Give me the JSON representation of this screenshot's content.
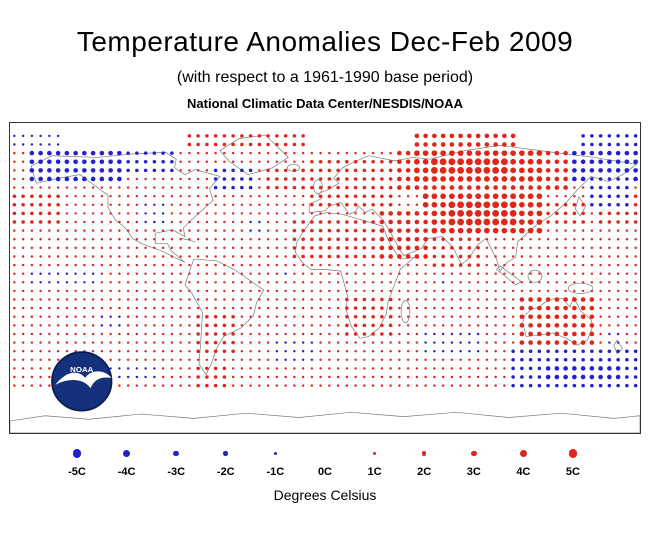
{
  "title": "Temperature Anomalies Dec-Feb 2009",
  "subtitle": "(with respect to a 1961-1990 base period)",
  "source": "National Climatic Data Center/NESDIS/NOAA",
  "logo": {
    "label": "NOAA"
  },
  "colors": {
    "positive": "#e0251a",
    "negative": "#2222cc"
  },
  "legend": {
    "caption": "Degrees Celsius",
    "items": [
      {
        "label": "-5C",
        "value": -5
      },
      {
        "label": "-4C",
        "value": -4
      },
      {
        "label": "-3C",
        "value": -3
      },
      {
        "label": "-2C",
        "value": -2
      },
      {
        "label": "-1C",
        "value": -1
      },
      {
        "label": "0C",
        "value": 0
      },
      {
        "label": "1C",
        "value": 1
      },
      {
        "label": "2C",
        "value": 2
      },
      {
        "label": "3C",
        "value": 3
      },
      {
        "label": "4C",
        "value": 4
      },
      {
        "label": "5C",
        "value": 5
      }
    ]
  },
  "chart_data": {
    "type": "scatter",
    "title": "Temperature Anomalies Dec-Feb 2009",
    "units": "degrees Celsius anomaly vs 1961-1990 base period",
    "projection": "equirectangular",
    "grid_degrees": 5,
    "lon_range": [
      -180,
      180
    ],
    "lat_range": [
      -90,
      90
    ],
    "base_value": 1,
    "base_lat_range": [
      -63,
      84
    ],
    "regions": [
      {
        "name": "arctic-row-clear",
        "lat": [
          75,
          85
        ],
        "lon": [
          -180,
          180
        ],
        "value": 0
      },
      {
        "name": "arctic-greenland-warm",
        "lat": [
          75,
          85
        ],
        "lon": [
          -80,
          -10
        ],
        "value": 2
      },
      {
        "name": "arctic-siberia-warm",
        "lat": [
          75,
          85
        ],
        "lon": [
          50,
          110
        ],
        "value": 3
      },
      {
        "name": "arctic-east-cold",
        "lat": [
          75,
          85
        ],
        "lon": [
          145,
          180
        ],
        "value": -2
      },
      {
        "name": "arctic-west-cold",
        "lat": [
          75,
          85
        ],
        "lon": [
          -180,
          -150
        ],
        "value": -1
      },
      {
        "name": "alaska-nw-canada-cold",
        "lat": [
          55,
          75
        ],
        "lon": [
          -170,
          -115
        ],
        "value": -3
      },
      {
        "name": "north-canada-cold",
        "lat": [
          60,
          75
        ],
        "lon": [
          -115,
          -85
        ],
        "value": -2
      },
      {
        "name": "labrador-cold",
        "lat": [
          52,
          65
        ],
        "lon": [
          -65,
          -42
        ],
        "value": -2
      },
      {
        "name": "north-atlantic-warm",
        "lat": [
          50,
          66
        ],
        "lon": [
          -35,
          -10
        ],
        "value": 2
      },
      {
        "name": "europe-warm",
        "lat": [
          42,
          72
        ],
        "lon": [
          -12,
          40
        ],
        "value": 2
      },
      {
        "name": "siberia-warm",
        "lat": [
          48,
          75
        ],
        "lon": [
          40,
          142
        ],
        "value": 3
      },
      {
        "name": "siberia-warm-core",
        "lat": [
          55,
          75
        ],
        "lon": [
          50,
          125
        ],
        "value": 4
      },
      {
        "name": "siberia-warm-peak",
        "lat": [
          60,
          72
        ],
        "lon": [
          60,
          105
        ],
        "value": 5
      },
      {
        "name": "bering-chukotka-cold",
        "lat": [
          55,
          75
        ],
        "lon": [
          142,
          180
        ],
        "value": -3
      },
      {
        "name": "india-warm",
        "lat": [
          5,
          28
        ],
        "lon": [
          62,
          92
        ],
        "value": 2
      },
      {
        "name": "central-asia-warm",
        "lat": [
          25,
          50
        ],
        "lon": [
          55,
          125
        ],
        "value": 4
      },
      {
        "name": "central-asia-peak",
        "lat": [
          28,
          46
        ],
        "lon": [
          68,
          112
        ],
        "value": 5
      },
      {
        "name": "middle-east-warm",
        "lat": [
          12,
          38
        ],
        "lon": [
          32,
          60
        ],
        "value": 3
      },
      {
        "name": "north-africa-warm",
        "lat": [
          8,
          35
        ],
        "lon": [
          -18,
          32
        ],
        "value": 2
      },
      {
        "name": "japan-warm",
        "lat": [
          28,
          45
        ],
        "lon": [
          125,
          150
        ],
        "value": 2
      },
      {
        "name": "north-pacific-warm-west",
        "lat": [
          28,
          48
        ],
        "lon": [
          155,
          180
        ],
        "value": 2
      },
      {
        "name": "north-pacific-warm-east",
        "lat": [
          28,
          48
        ],
        "lon": [
          -180,
          -150
        ],
        "value": 2
      },
      {
        "name": "northwest-pacific-cold",
        "lat": [
          42,
          58
        ],
        "lon": [
          148,
          175
        ],
        "value": -2
      },
      {
        "name": "us-central-cold",
        "lat": [
          32,
          45
        ],
        "lon": [
          -105,
          -88
        ],
        "value": -1
      },
      {
        "name": "central-atlantic-cool-spot",
        "lat": [
          25,
          33
        ],
        "lon": [
          -45,
          -35
        ],
        "value": -1
      },
      {
        "name": "equatorial-pacific-cool",
        "lat": [
          -5,
          3
        ],
        "lon": [
          -170,
          -130
        ],
        "value": -1
      },
      {
        "name": "eq-atlantic-cool-spot",
        "lat": [
          0,
          5
        ],
        "lon": [
          -25,
          -20
        ],
        "value": -1
      },
      {
        "name": "eq-indian-cool-spot",
        "lat": [
          -5,
          0
        ],
        "lon": [
          65,
          70
        ],
        "value": -1
      },
      {
        "name": "south-africa-warm",
        "lat": [
          -35,
          -12
        ],
        "lon": [
          12,
          38
        ],
        "value": 2
      },
      {
        "name": "australia-warm",
        "lat": [
          -40,
          -10
        ],
        "lon": [
          110,
          155
        ],
        "value": 3
      },
      {
        "name": "argentina-warm",
        "lat": [
          -45,
          -20
        ],
        "lon": [
          -75,
          -50
        ],
        "value": 2
      },
      {
        "name": "south-atlantic-cool",
        "lat": [
          -50,
          -35
        ],
        "lon": [
          -30,
          -5
        ],
        "value": -1
      },
      {
        "name": "south-indian-cool",
        "lat": [
          -45,
          -28
        ],
        "lon": [
          55,
          90
        ],
        "value": -1
      },
      {
        "name": "south-pacific-cool-spot",
        "lat": [
          -30,
          -22
        ],
        "lon": [
          -130,
          -115
        ],
        "value": -1
      },
      {
        "name": "tasman-cool-spot",
        "lat": [
          -40,
          -32
        ],
        "lon": [
          160,
          170
        ],
        "value": -1
      },
      {
        "name": "southern-australia-ocean-cold",
        "lat": [
          -65,
          -42
        ],
        "lon": [
          105,
          180
        ],
        "value": -2
      },
      {
        "name": "southern-ocean-cold-core",
        "lat": [
          -62,
          -48
        ],
        "lon": [
          125,
          170
        ],
        "value": -3
      },
      {
        "name": "southeast-pacific-cool",
        "lat": [
          -62,
          -48
        ],
        "lon": [
          -130,
          -95
        ],
        "value": -1
      },
      {
        "name": "drake-passage-warm",
        "lat": [
          -65,
          -50
        ],
        "lon": [
          -75,
          -55
        ],
        "value": 2
      }
    ]
  }
}
